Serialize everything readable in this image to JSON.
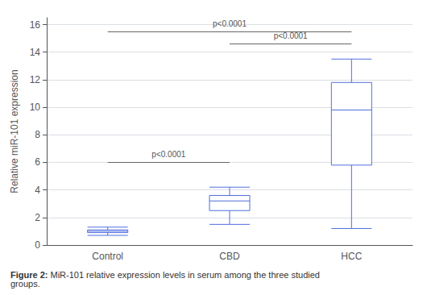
{
  "chart_data": {
    "type": "box",
    "categories": [
      "Control",
      "CBD",
      "HCC"
    ],
    "values": [
      {
        "whislo": 0.7,
        "q1": 0.9,
        "med": 1.0,
        "q3": 1.1,
        "whishi": 1.3
      },
      {
        "whislo": 1.5,
        "q1": 2.5,
        "med": 3.2,
        "q3": 3.6,
        "whishi": 4.2
      },
      {
        "whislo": 1.2,
        "q1": 5.8,
        "med": 9.8,
        "q3": 11.8,
        "whishi": 13.5
      }
    ],
    "ylabel": "Relative miR-101 expression",
    "ylim": [
      0,
      16.5
    ],
    "yticks": [
      0,
      2,
      4,
      6,
      8,
      10,
      12,
      14,
      16
    ],
    "annotations": [
      {
        "from": "Control",
        "to": "HCC",
        "y": 15.5,
        "label": "p<0.0001"
      },
      {
        "from": "CBD",
        "to": "HCC",
        "y": 14.6,
        "label": "p<0.0001"
      },
      {
        "from": "Control",
        "to": "CBD",
        "y": 6.0,
        "label": "p<0.0001"
      }
    ],
    "caption_label": "Figure 2:",
    "caption": "MiR-101 relative expression levels in serum among the three studied groups."
  }
}
